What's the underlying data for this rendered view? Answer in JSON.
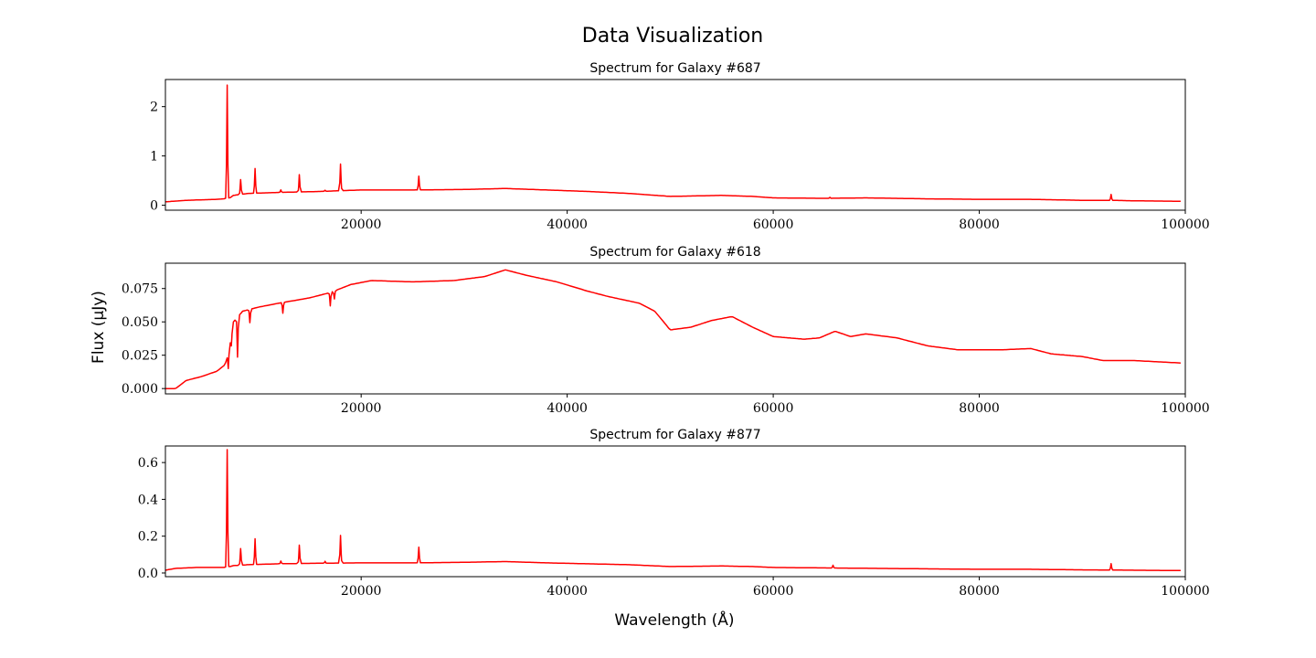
{
  "figure": {
    "title": "Data Visualization",
    "xlabel": "Wavelength (Å)",
    "ylabel": "Flux (μJy)",
    "line_color": "#ff0000"
  },
  "chart_data": [
    {
      "type": "line",
      "title": "Spectrum for Galaxy #687",
      "xlim": [
        1000,
        100000
      ],
      "ylim": [
        -0.1,
        2.55
      ],
      "x_ticks": [
        20000,
        40000,
        60000,
        80000,
        100000
      ],
      "y_ticks": [
        0,
        1,
        2
      ],
      "y_tick_labels": [
        "0",
        "1",
        "2"
      ],
      "continuum": [
        [
          1000,
          0.07
        ],
        [
          3000,
          0.1
        ],
        [
          6000,
          0.12
        ],
        [
          7200,
          0.14
        ],
        [
          7600,
          0.2
        ],
        [
          9000,
          0.24
        ],
        [
          12000,
          0.26
        ],
        [
          16000,
          0.28
        ],
        [
          20000,
          0.31
        ],
        [
          25000,
          0.31
        ],
        [
          30000,
          0.32
        ],
        [
          34000,
          0.34
        ],
        [
          38000,
          0.31
        ],
        [
          42000,
          0.28
        ],
        [
          46000,
          0.24
        ],
        [
          50000,
          0.18
        ],
        [
          55000,
          0.2
        ],
        [
          58000,
          0.18
        ],
        [
          60000,
          0.15
        ],
        [
          65000,
          0.14
        ],
        [
          69000,
          0.15
        ],
        [
          75000,
          0.13
        ],
        [
          80000,
          0.12
        ],
        [
          85000,
          0.12
        ],
        [
          90000,
          0.1
        ],
        [
          93000,
          0.1
        ],
        [
          95000,
          0.09
        ],
        [
          100000,
          0.08
        ]
      ],
      "lines": [
        [
          7000,
          2.3
        ],
        [
          8300,
          0.3
        ],
        [
          9700,
          0.5
        ],
        [
          12200,
          0.05
        ],
        [
          14000,
          0.35
        ],
        [
          16500,
          0.02
        ],
        [
          18000,
          0.54
        ],
        [
          25600,
          0.28
        ],
        [
          65500,
          0.02
        ],
        [
          92800,
          0.12
        ]
      ]
    },
    {
      "type": "line",
      "title": "Spectrum for Galaxy #618",
      "xlim": [
        1000,
        100000
      ],
      "ylim": [
        -0.004,
        0.094
      ],
      "x_ticks": [
        20000,
        40000,
        60000,
        80000,
        100000
      ],
      "y_ticks": [
        0,
        0.025,
        0.05,
        0.075
      ],
      "y_tick_labels": [
        "0.000",
        "0.025",
        "0.050",
        "0.075"
      ],
      "continuum": [
        [
          1000,
          0.0
        ],
        [
          2000,
          0.0
        ],
        [
          3000,
          0.006
        ],
        [
          4500,
          0.009
        ],
        [
          6000,
          0.013
        ],
        [
          6800,
          0.018
        ],
        [
          7200,
          0.03
        ],
        [
          7600,
          0.05
        ],
        [
          8500,
          0.058
        ],
        [
          10000,
          0.061
        ],
        [
          12000,
          0.064
        ],
        [
          15000,
          0.068
        ],
        [
          17000,
          0.072
        ],
        [
          19000,
          0.078
        ],
        [
          21000,
          0.081
        ],
        [
          25000,
          0.08
        ],
        [
          29000,
          0.081
        ],
        [
          32000,
          0.084
        ],
        [
          34000,
          0.089
        ],
        [
          36000,
          0.085
        ],
        [
          39000,
          0.08
        ],
        [
          42000,
          0.073
        ],
        [
          44000,
          0.069
        ],
        [
          47000,
          0.064
        ],
        [
          48500,
          0.058
        ],
        [
          50000,
          0.044
        ],
        [
          52000,
          0.046
        ],
        [
          54000,
          0.051
        ],
        [
          56000,
          0.054
        ],
        [
          58000,
          0.046
        ],
        [
          60000,
          0.039
        ],
        [
          63000,
          0.037
        ],
        [
          64500,
          0.038
        ],
        [
          66000,
          0.043
        ],
        [
          67500,
          0.039
        ],
        [
          69000,
          0.041
        ],
        [
          72000,
          0.038
        ],
        [
          75000,
          0.032
        ],
        [
          78000,
          0.029
        ],
        [
          82000,
          0.029
        ],
        [
          85000,
          0.03
        ],
        [
          87000,
          0.026
        ],
        [
          90000,
          0.024
        ],
        [
          92000,
          0.021
        ],
        [
          95000,
          0.021
        ],
        [
          100000,
          0.019
        ]
      ],
      "lines": [
        [
          7100,
          -0.012
        ],
        [
          7400,
          -0.008
        ],
        [
          8000,
          -0.03
        ],
        [
          9200,
          -0.01
        ],
        [
          12400,
          -0.008
        ],
        [
          17000,
          -0.01
        ],
        [
          17400,
          -0.006
        ]
      ]
    },
    {
      "type": "line",
      "title": "Spectrum for Galaxy #877",
      "xlim": [
        1000,
        100000
      ],
      "ylim": [
        -0.02,
        0.69
      ],
      "x_ticks": [
        20000,
        40000,
        60000,
        80000,
        100000
      ],
      "y_ticks": [
        0,
        0.2,
        0.4,
        0.6
      ],
      "y_tick_labels": [
        "0.0",
        "0.2",
        "0.4",
        "0.6"
      ],
      "continuum": [
        [
          1000,
          0.015
        ],
        [
          2000,
          0.025
        ],
        [
          4000,
          0.03
        ],
        [
          7000,
          0.03
        ],
        [
          7600,
          0.04
        ],
        [
          9000,
          0.045
        ],
        [
          12000,
          0.05
        ],
        [
          16000,
          0.053
        ],
        [
          20000,
          0.055
        ],
        [
          25000,
          0.055
        ],
        [
          30000,
          0.058
        ],
        [
          34000,
          0.062
        ],
        [
          38000,
          0.055
        ],
        [
          42000,
          0.05
        ],
        [
          46000,
          0.045
        ],
        [
          50000,
          0.035
        ],
        [
          55000,
          0.038
        ],
        [
          58000,
          0.035
        ],
        [
          60000,
          0.03
        ],
        [
          64000,
          0.028
        ],
        [
          68000,
          0.026
        ],
        [
          72000,
          0.024
        ],
        [
          76000,
          0.022
        ],
        [
          80000,
          0.02
        ],
        [
          85000,
          0.02
        ],
        [
          90000,
          0.017
        ],
        [
          93000,
          0.016
        ],
        [
          95000,
          0.015
        ],
        [
          100000,
          0.013
        ]
      ],
      "lines": [
        [
          7000,
          0.64
        ],
        [
          8300,
          0.09
        ],
        [
          9700,
          0.14
        ],
        [
          12200,
          0.015
        ],
        [
          14000,
          0.1
        ],
        [
          16500,
          0.01
        ],
        [
          18000,
          0.15
        ],
        [
          25600,
          0.085
        ],
        [
          65800,
          0.015
        ],
        [
          92800,
          0.035
        ]
      ]
    }
  ]
}
